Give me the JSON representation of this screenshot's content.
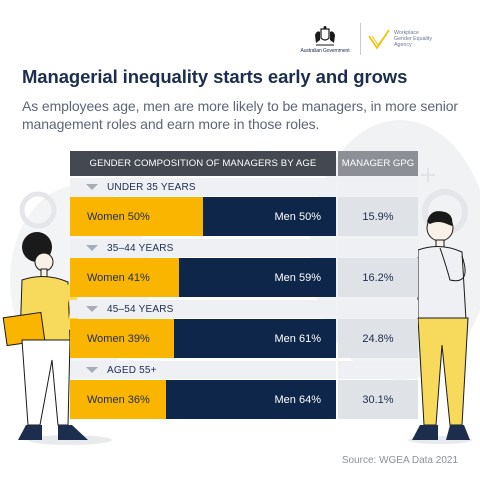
{
  "logos": {
    "gov_name": "Australian Government",
    "agency_lines": [
      "Workplace",
      "Gender Equality",
      "Agency"
    ]
  },
  "title": "Managerial inequality starts early and grows",
  "subtitle": "As employees age, men are more likely to be managers, in more senior management roles and earn more in those roles.",
  "headers": {
    "composition": "GENDER COMPOSITION OF MANAGERS BY AGE",
    "gpg": "MANAGER GPG"
  },
  "rows": [
    {
      "age": "UNDER 35 YEARS",
      "women_label": "Women 50%",
      "men_label": "Men 50%",
      "gpg": "15.9%"
    },
    {
      "age": "35–44 YEARS",
      "women_label": "Women 41%",
      "men_label": "Men 59%",
      "gpg": "16.2%"
    },
    {
      "age": "45–54 YEARS",
      "women_label": "Women 39%",
      "men_label": "Men 61%",
      "gpg": "24.8%"
    },
    {
      "age": "AGED 55+",
      "women_label": "Women 36%",
      "men_label": "Men 64%",
      "gpg": "30.1%"
    }
  ],
  "source": "Source: WGEA Data 2021",
  "colors": {
    "women": "#fab500",
    "men": "#0d2649",
    "header_dark": "#434851",
    "header_gray": "#8c9096",
    "title": "#1d2d4e"
  },
  "chart_data": {
    "type": "bar",
    "stacked": true,
    "orientation": "horizontal",
    "title": "GENDER COMPOSITION OF MANAGERS BY AGE",
    "categories": [
      "UNDER 35 YEARS",
      "35–44 YEARS",
      "45–54 YEARS",
      "AGED 55+"
    ],
    "series": [
      {
        "name": "Women",
        "values": [
          50,
          41,
          39,
          36
        ]
      },
      {
        "name": "Men",
        "values": [
          50,
          59,
          61,
          64
        ]
      }
    ],
    "gpg_column": {
      "label": "MANAGER GPG",
      "values": [
        "15.9%",
        "16.2%",
        "24.8%",
        "30.1%"
      ]
    },
    "xlim": [
      0,
      100
    ]
  }
}
